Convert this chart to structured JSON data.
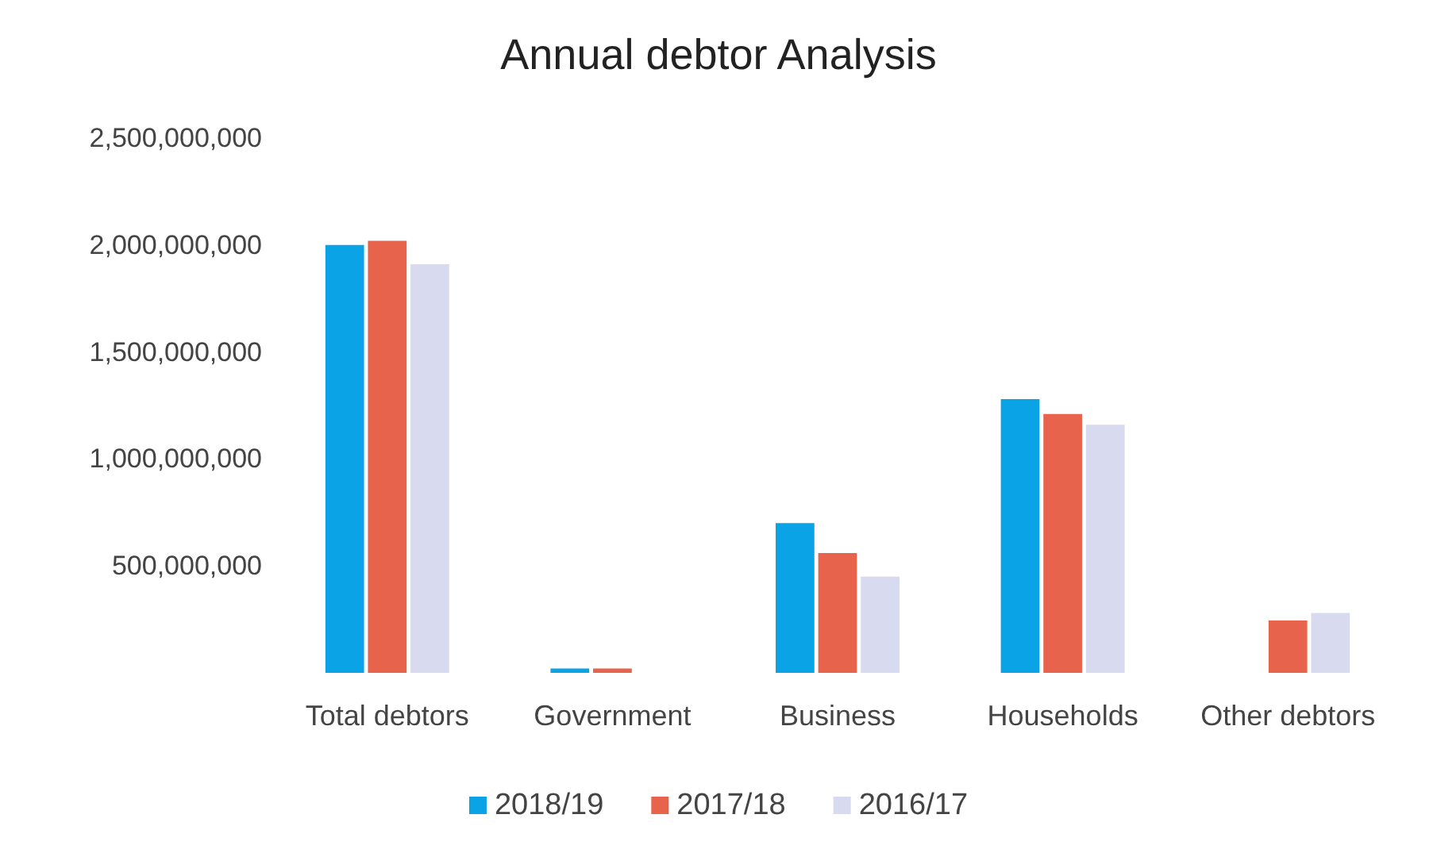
{
  "chart_data": {
    "type": "bar",
    "title": "Annual debtor Analysis",
    "categories": [
      "Total debtors",
      "Government",
      "Business",
      "Households",
      "Other debtors"
    ],
    "series": [
      {
        "name": "2018/19",
        "color": "#0aa3e6",
        "values": [
          2000000000,
          20000000,
          700000000,
          1280000000,
          0
        ]
      },
      {
        "name": "2017/18",
        "color": "#e8634c",
        "values": [
          2020000000,
          20000000,
          560000000,
          1210000000,
          245000000
        ]
      },
      {
        "name": "2016/17",
        "color": "#d8dbf0",
        "values": [
          1910000000,
          0,
          450000000,
          1160000000,
          280000000
        ]
      }
    ],
    "ylim": [
      0,
      2500000000
    ],
    "yticks": [
      {
        "value": 500000000,
        "label": "500,000,000"
      },
      {
        "value": 1000000000,
        "label": "1,000,000,000"
      },
      {
        "value": 1500000000,
        "label": "1,500,000,000"
      },
      {
        "value": 2000000000,
        "label": "2,000,000,000"
      },
      {
        "value": 2500000000,
        "label": "2,500,000,000"
      }
    ],
    "grid": false,
    "legend": "bottom"
  }
}
